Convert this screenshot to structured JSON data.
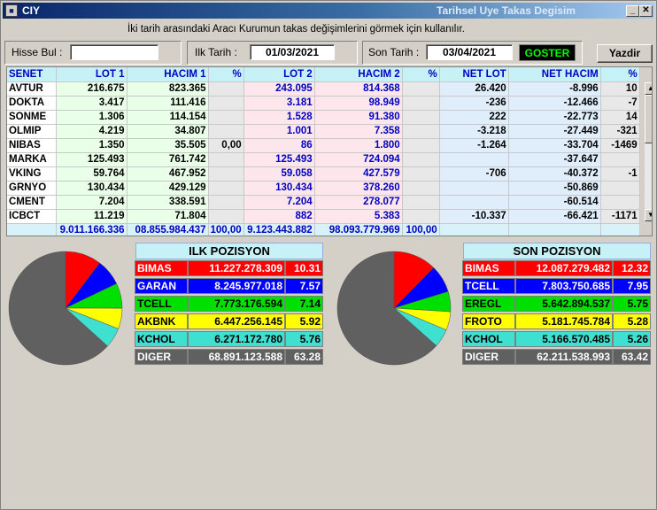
{
  "window": {
    "title_left": "CIY",
    "title_right": "Tarihsel Uye Takas Degisim"
  },
  "description": "İki tarih arasındaki  Aracı Kurumun takas değişimlerini görmek için kullanılır.",
  "controls": {
    "hisse_label": "Hisse Bul :",
    "hisse_value": "",
    "ilk_label": "Ilk Tarih :",
    "ilk_value": "01/03/2021",
    "son_label": "Son Tarih :",
    "son_value": "03/04/2021",
    "goster_label": "GOSTER",
    "yazdir_label": "Yazdir"
  },
  "table": {
    "headers": [
      "SENET",
      "LOT 1",
      "HACIM 1",
      "%",
      "LOT 2",
      "HACIM 2",
      "%",
      "NET LOT",
      "NET HACIM",
      "%"
    ],
    "rows": [
      [
        "AVTUR",
        "216.675",
        "823.365",
        "",
        "243.095",
        "814.368",
        "",
        "26.420",
        "-8.996",
        "10"
      ],
      [
        "DOKTA",
        "3.417",
        "111.416",
        "",
        "3.181",
        "98.949",
        "",
        "-236",
        "-12.466",
        "-7"
      ],
      [
        "SONME",
        "1.306",
        "114.154",
        "",
        "1.528",
        "91.380",
        "",
        "222",
        "-22.773",
        "14"
      ],
      [
        "OLMIP",
        "4.219",
        "34.807",
        "",
        "1.001",
        "7.358",
        "",
        "-3.218",
        "-27.449",
        "-321"
      ],
      [
        "NIBAS",
        "1.350",
        "35.505",
        "0,00",
        "86",
        "1.800",
        "",
        "-1.264",
        "-33.704",
        "-1469"
      ],
      [
        "MARKA",
        "125.493",
        "761.742",
        "",
        "125.493",
        "724.094",
        "",
        "",
        "-37.647",
        ""
      ],
      [
        "VKING",
        "59.764",
        "467.952",
        "",
        "59.058",
        "427.579",
        "",
        "-706",
        "-40.372",
        "-1"
      ],
      [
        "GRNYO",
        "130.434",
        "429.129",
        "",
        "130.434",
        "378.260",
        "",
        "",
        "-50.869",
        ""
      ],
      [
        "CMENT",
        "7.204",
        "338.591",
        "",
        "7.204",
        "278.077",
        "",
        "",
        "-60.514",
        ""
      ],
      [
        "ICBCT",
        "11.219",
        "71.804",
        "",
        "882",
        "5.383",
        "",
        "-10.337",
        "-66.421",
        "-1171"
      ]
    ],
    "totals": [
      "",
      "9.011.166.336",
      "08.855.984.437",
      "100,00",
      "9.123.443.882",
      "98.093.779.969",
      "100,00",
      "",
      "",
      ""
    ]
  },
  "ilk_pozisyon": {
    "title": "ILK POZISYON",
    "rows": [
      {
        "name": "BIMAS",
        "value": "11.227.278.309",
        "pct": "10.31",
        "color": "#ff0000",
        "text": "#ffffff"
      },
      {
        "name": "GARAN",
        "value": "8.245.977.018",
        "pct": "7.57",
        "color": "#0000ff",
        "text": "#ffffff"
      },
      {
        "name": "TCELL",
        "value": "7.773.176.594",
        "pct": "7.14",
        "color": "#00e000",
        "text": "#000000"
      },
      {
        "name": "AKBNK",
        "value": "6.447.256.145",
        "pct": "5.92",
        "color": "#ffff00",
        "text": "#000000"
      },
      {
        "name": "KCHOL",
        "value": "6.271.172.780",
        "pct": "5.76",
        "color": "#40e0d0",
        "text": "#000000"
      },
      {
        "name": "DIGER",
        "value": "68.891.123.588",
        "pct": "63.28",
        "color": "#606060",
        "text": "#ffffff"
      }
    ]
  },
  "son_pozisyon": {
    "title": "SON POZISYON",
    "rows": [
      {
        "name": "BIMAS",
        "value": "12.087.279.482",
        "pct": "12.32",
        "color": "#ff0000",
        "text": "#ffffff"
      },
      {
        "name": "TCELL",
        "value": "7.803.750.685",
        "pct": "7.95",
        "color": "#0000ff",
        "text": "#ffffff"
      },
      {
        "name": "EREGL",
        "value": "5.642.894.537",
        "pct": "5.75",
        "color": "#00e000",
        "text": "#000000"
      },
      {
        "name": "FROTO",
        "value": "5.181.745.784",
        "pct": "5.28",
        "color": "#ffff00",
        "text": "#000000"
      },
      {
        "name": "KCHOL",
        "value": "5.166.570.485",
        "pct": "5.26",
        "color": "#40e0d0",
        "text": "#000000"
      },
      {
        "name": "DIGER",
        "value": "62.211.538.993",
        "pct": "63.42",
        "color": "#606060",
        "text": "#ffffff"
      }
    ]
  }
}
